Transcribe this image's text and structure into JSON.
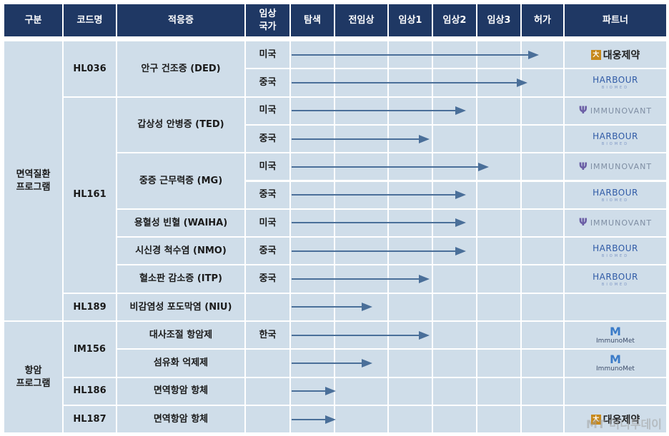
{
  "headers": {
    "category": "구분",
    "code": "코드명",
    "indication": "적응증",
    "country": "임상\n국가",
    "discovery": "탐색",
    "preclinical": "전임상",
    "phase1": "임상1",
    "phase2": "임상2",
    "phase3": "임상3",
    "approval": "허가",
    "partner": "파트너"
  },
  "groups": {
    "immune": "면역질환\n프로그램",
    "anticancer": "항암\n프로그램"
  },
  "codes": {
    "hl036": "HL036",
    "hl161": "HL161",
    "hl189": "HL189",
    "im156": "IM156",
    "hl186": "HL186",
    "hl187": "HL187"
  },
  "indications": {
    "ded": "안구 건조증 (DED)",
    "ted": "갑상성 안병증 (TED)",
    "mg": "중증 근무력증 (MG)",
    "waiha": "용혈성 빈혈 (WAIHA)",
    "nmo": "시신경 척수염 (NMO)",
    "itp": "혈소판 감소증 (ITP)",
    "niu": "비감염성 포도막염 (NIU)",
    "metabolic": "대사조절 항암제",
    "fibrosis": "섬유화 억제제",
    "io1": "면역항암 항체",
    "io2": "면역항암 항체"
  },
  "countries": {
    "r1": "미국",
    "r2": "중국",
    "r3": "미국",
    "r4": "중국",
    "r5": "미국",
    "r6": "중국",
    "r7": "미국",
    "r8": "중국",
    "r9": "중국",
    "r10": "",
    "r11": "한국",
    "r12": "",
    "r13": "",
    "r14": ""
  },
  "rows": [
    {
      "stage_end": 5.45,
      "partner": "daewoong"
    },
    {
      "stage_end": 5.2,
      "partner": "harbour"
    },
    {
      "stage_end": 3.85,
      "partner": "immunovant"
    },
    {
      "stage_end": 3.05,
      "partner": "harbour"
    },
    {
      "stage_end": 4.35,
      "partner": "immunovant"
    },
    {
      "stage_end": 3.85,
      "partner": "harbour"
    },
    {
      "stage_end": 3.85,
      "partner": "immunovant"
    },
    {
      "stage_end": 3.85,
      "partner": "harbour"
    },
    {
      "stage_end": 3.05,
      "partner": "harbour"
    },
    {
      "stage_end": 1.8,
      "partner": ""
    },
    {
      "stage_end": 3.05,
      "partner": "immunomet"
    },
    {
      "stage_end": 1.8,
      "partner": "immunomet"
    },
    {
      "stage_end": 1.0,
      "partner": ""
    },
    {
      "stage_end": 1.0,
      "partner": "daewoong"
    }
  ],
  "logos": {
    "daewoong": {
      "mark": "大",
      "text": "대웅제약"
    },
    "harbour": {
      "text": "HARBOUR",
      "sub": "BIOMED"
    },
    "immunovant": {
      "mark": "Ψ",
      "text": "IMMUNOVANT"
    },
    "immunomet": {
      "mark": "M",
      "text": "ImmunoMet"
    }
  },
  "watermark": "MT 머니투데이",
  "colors": {
    "header": "#1f3864",
    "cell": "#cfdde9",
    "arrow": "#4a6f99"
  }
}
